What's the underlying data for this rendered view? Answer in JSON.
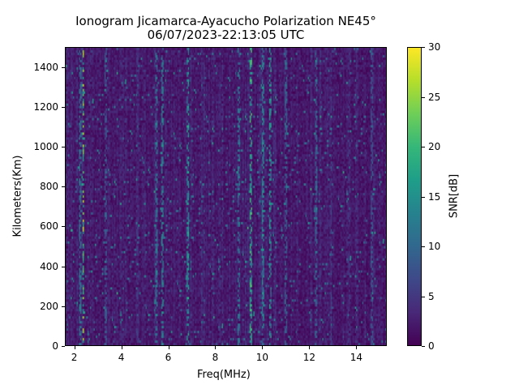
{
  "chart_data": {
    "type": "heatmap",
    "title": "Ionogram Jicamarca-Ayacucho Polarization NE45°",
    "subtitle": "06/07/2023-22:13:05 UTC",
    "xlabel": "Freq(MHz)",
    "ylabel": "Kilometers(Km)",
    "xlim": [
      1.6,
      15.3
    ],
    "ylim": [
      0,
      1500
    ],
    "xticks": [
      "2",
      "4",
      "6",
      "8",
      "10",
      "12",
      "14"
    ],
    "yticks": [
      "0",
      "200",
      "400",
      "600",
      "800",
      "1000",
      "1200",
      "1400"
    ],
    "colorbar": {
      "label": "SNR[dB]",
      "range": [
        0,
        30
      ],
      "ticks": [
        "0",
        "5",
        "10",
        "15",
        "20",
        "25",
        "30"
      ],
      "colormap": "viridis"
    },
    "background_snr_db": 2,
    "bright_bands": [
      {
        "freq_mhz": 2.35,
        "snr_db": 28
      },
      {
        "freq_mhz": 2.2,
        "snr_db": 14
      },
      {
        "freq_mhz": 3.3,
        "snr_db": 10
      },
      {
        "freq_mhz": 5.5,
        "snr_db": 14
      },
      {
        "freq_mhz": 5.75,
        "snr_db": 16
      },
      {
        "freq_mhz": 6.85,
        "snr_db": 18
      },
      {
        "freq_mhz": 9.0,
        "snr_db": 14
      },
      {
        "freq_mhz": 9.5,
        "snr_db": 22
      },
      {
        "freq_mhz": 10.05,
        "snr_db": 16
      },
      {
        "freq_mhz": 10.35,
        "snr_db": 18
      },
      {
        "freq_mhz": 11.0,
        "snr_db": 12
      },
      {
        "freq_mhz": 12.3,
        "snr_db": 12
      },
      {
        "freq_mhz": 14.7,
        "snr_db": 10
      }
    ]
  }
}
